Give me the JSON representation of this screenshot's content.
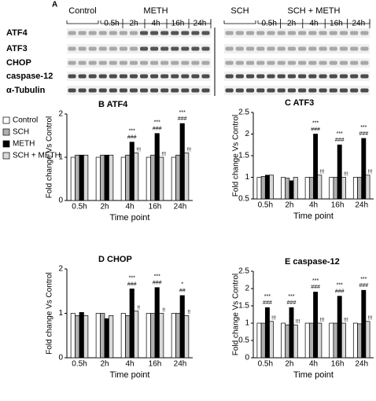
{
  "blot": {
    "panel": "A",
    "groups": [
      "Control",
      "METH",
      "SCH",
      "SCH + METH"
    ],
    "timepoints": [
      [
        "0.5h",
        "2h",
        "4h",
        "16h",
        "24h"
      ],
      [
        "0.5h",
        "2h",
        "4h",
        "16h",
        "24h"
      ]
    ],
    "rows": [
      "ATF4",
      "ATF3",
      "CHOP",
      "caspase-12",
      "α-Tubulin"
    ]
  },
  "chart_data": [
    {
      "type": "bar",
      "title": "B ATF4",
      "x_label": "Time point",
      "y_label": "Fold change Vs Control",
      "categories": [
        "0.5h",
        "2h",
        "4h",
        "16h",
        "24h"
      ],
      "ylim": [
        0,
        2
      ],
      "yticks": [
        0,
        1,
        2
      ],
      "series": [
        {
          "name": "Control",
          "color": "#ffffff",
          "values": [
            1,
            1,
            1,
            1,
            1
          ]
        },
        {
          "name": "SCH",
          "color": "#b0b0b0",
          "values": [
            1.05,
            1.05,
            1.05,
            1.05,
            1.05
          ]
        },
        {
          "name": "METH",
          "color": "#000000",
          "values": [
            1.05,
            1.05,
            1.35,
            1.55,
            1.78
          ],
          "annotations": [
            null,
            null,
            [
              "***",
              "###"
            ],
            [
              "***",
              "###"
            ],
            [
              "***",
              "###"
            ]
          ]
        },
        {
          "name": "SCH + METH",
          "color": "#d9d9d9",
          "values": [
            1.05,
            1.05,
            1.1,
            1.0,
            1.1
          ],
          "annotations": [
            null,
            null,
            [
              "!!!"
            ],
            [
              "!!!"
            ],
            [
              "!!!"
            ]
          ]
        }
      ]
    },
    {
      "type": "bar",
      "title": "C ATF3",
      "x_label": "Time point",
      "y_label": "Fold change Vs Control",
      "categories": [
        "0.5h",
        "2h",
        "4h",
        "16h",
        "24h"
      ],
      "ylim": [
        0.5,
        2.5
      ],
      "yticks": [
        0.5,
        1,
        1.5,
        2,
        2.5
      ],
      "series": [
        {
          "name": "Control",
          "color": "#ffffff",
          "values": [
            1,
            1,
            1,
            1,
            1
          ]
        },
        {
          "name": "SCH",
          "color": "#b0b0b0",
          "values": [
            1.02,
            0.98,
            1.0,
            1.0,
            1.0
          ]
        },
        {
          "name": "METH",
          "color": "#000000",
          "values": [
            1.05,
            0.92,
            2.0,
            1.75,
            1.9
          ],
          "annotations": [
            null,
            null,
            [
              "***",
              "###"
            ],
            [
              "***",
              "###"
            ],
            [
              "***",
              "###"
            ]
          ]
        },
        {
          "name": "SCH + METH",
          "color": "#d9d9d9",
          "values": [
            1.05,
            1.0,
            1.05,
            1.0,
            1.05
          ],
          "annotations": [
            null,
            null,
            [
              "!!!"
            ],
            [
              "!!!"
            ],
            [
              "!!!"
            ]
          ]
        }
      ]
    },
    {
      "type": "bar",
      "title": "D CHOP",
      "x_label": "Time point",
      "y_label": "Fold change Vs Control",
      "categories": [
        "0.5h",
        "2h",
        "4h",
        "16h",
        "24h"
      ],
      "ylim": [
        0,
        2
      ],
      "yticks": [
        0,
        1,
        2
      ],
      "series": [
        {
          "name": "Control",
          "color": "#ffffff",
          "values": [
            1,
            1,
            1,
            1,
            1
          ]
        },
        {
          "name": "SCH",
          "color": "#b0b0b0",
          "values": [
            0.95,
            1.0,
            0.95,
            1.0,
            1.0
          ]
        },
        {
          "name": "METH",
          "color": "#000000",
          "values": [
            1.02,
            0.88,
            1.55,
            1.58,
            1.4
          ],
          "annotations": [
            null,
            null,
            [
              "***",
              "###"
            ],
            [
              "***",
              "###"
            ],
            [
              "*",
              "##"
            ]
          ]
        },
        {
          "name": "SCH + METH",
          "color": "#d9d9d9",
          "values": [
            0.95,
            0.95,
            1.05,
            1.0,
            0.95
          ],
          "annotations": [
            null,
            null,
            [
              "!!"
            ],
            [
              "!!"
            ],
            [
              "!!"
            ]
          ]
        }
      ]
    },
    {
      "type": "bar",
      "title": "E caspase-12",
      "x_label": "Time point",
      "y_label": "Fold change Vs Control",
      "categories": [
        "0.5h",
        "2h",
        "4h",
        "16h",
        "24h"
      ],
      "ylim": [
        0,
        2.5
      ],
      "yticks": [
        0,
        0.5,
        1,
        1.5,
        2,
        2.5
      ],
      "series": [
        {
          "name": "Control",
          "color": "#ffffff",
          "values": [
            1,
            1,
            1,
            1,
            1
          ]
        },
        {
          "name": "SCH",
          "color": "#b0b0b0",
          "values": [
            1,
            0.95,
            1.0,
            1.0,
            0.98
          ]
        },
        {
          "name": "METH",
          "color": "#000000",
          "values": [
            1.45,
            1.45,
            1.9,
            1.78,
            1.95
          ],
          "annotations": [
            [
              "***",
              "###"
            ],
            [
              "***",
              "###"
            ],
            [
              "***",
              "###"
            ],
            [
              "***",
              "###"
            ],
            [
              "***",
              "###"
            ]
          ]
        },
        {
          "name": "SCH + METH",
          "color": "#d9d9d9",
          "values": [
            1.05,
            0.95,
            1.0,
            1.0,
            1.05
          ],
          "annotations": [
            [
              "!!!"
            ],
            [
              "!!!"
            ],
            [
              "!!!"
            ],
            [
              "!!!"
            ],
            [
              "!!!"
            ]
          ]
        }
      ]
    }
  ]
}
